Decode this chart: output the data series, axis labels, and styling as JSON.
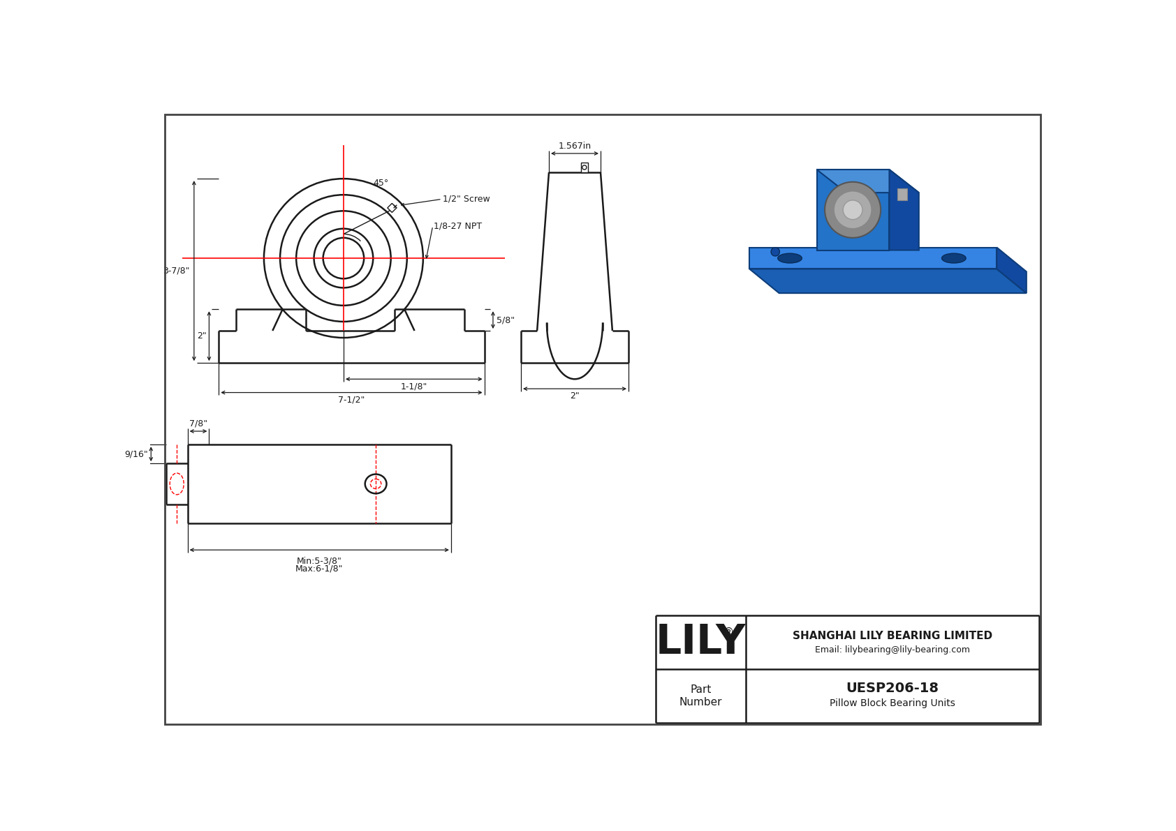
{
  "bg_color": "#ffffff",
  "line_color": "#1a1a1a",
  "red_line_color": "#ff0000",
  "title": "UESP206-18",
  "subtitle": "Pillow Block Bearing Units",
  "company": "SHANGHAI LILY BEARING LIMITED",
  "email": "Email: lilybearing@lily-bearing.com",
  "part_label": "Part\nNumber",
  "logo_text": "LILY",
  "logo_reg": "®",
  "dims": {
    "total_height": "3-7/8\"",
    "base_height": "2\"",
    "base_width": "7-1/2\"",
    "center_offset": "1-1/8\"",
    "side_height": "5/8\"",
    "sv_top_dim": "1.567in",
    "sv_base_dim": "2\"",
    "screw_label": "1/2\" Screw",
    "npt_label": "1/8-27 NPT",
    "angle_label": "45°",
    "bottom_min": "Min:5-3/8\"",
    "bottom_max": "Max:6-1/8\"",
    "tab_width": "7/8\"",
    "tab_height": "9/16\""
  }
}
